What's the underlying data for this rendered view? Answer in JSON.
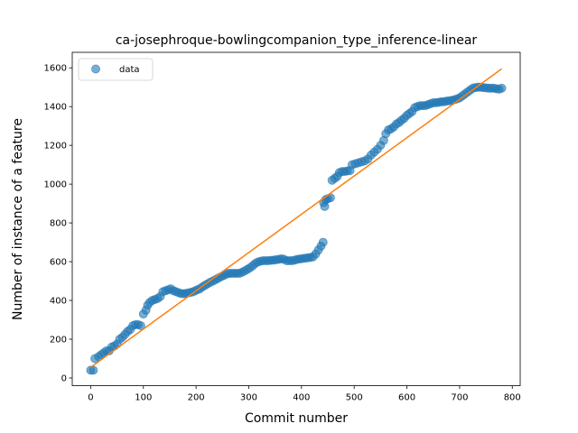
{
  "chart_data": {
    "type": "scatter",
    "title": "ca-josephroque-bowlingcompanion_type_inference-linear",
    "xlabel": "Commit number",
    "ylabel": "Number of instance of a feature",
    "xlim": [
      -35,
      815
    ],
    "ylim": [
      -40,
      1680
    ],
    "xticks": [
      0,
      100,
      200,
      300,
      400,
      500,
      600,
      700,
      800
    ],
    "yticks": [
      0,
      200,
      400,
      600,
      800,
      1000,
      1200,
      1400,
      1600
    ],
    "grid": false,
    "legend_position": "upper-left",
    "colors": {
      "data": "#1f77b4",
      "fit": "#ff7f0e"
    },
    "series": [
      {
        "name": "data",
        "kind": "scatter",
        "points": [
          [
            0,
            40
          ],
          [
            5,
            40
          ],
          [
            8,
            100
          ],
          [
            15,
            110
          ],
          [
            20,
            120
          ],
          [
            25,
            130
          ],
          [
            30,
            140
          ],
          [
            35,
            140
          ],
          [
            40,
            160
          ],
          [
            45,
            165
          ],
          [
            50,
            175
          ],
          [
            55,
            200
          ],
          [
            60,
            210
          ],
          [
            65,
            225
          ],
          [
            70,
            240
          ],
          [
            75,
            250
          ],
          [
            80,
            270
          ],
          [
            85,
            275
          ],
          [
            90,
            275
          ],
          [
            95,
            270
          ],
          [
            100,
            330
          ],
          [
            105,
            350
          ],
          [
            108,
            375
          ],
          [
            112,
            390
          ],
          [
            117,
            400
          ],
          [
            122,
            405
          ],
          [
            127,
            410
          ],
          [
            132,
            420
          ],
          [
            137,
            445
          ],
          [
            142,
            450
          ],
          [
            147,
            455
          ],
          [
            152,
            460
          ],
          [
            157,
            450
          ],
          [
            162,
            445
          ],
          [
            167,
            440
          ],
          [
            172,
            435
          ],
          [
            177,
            435
          ],
          [
            182,
            437
          ],
          [
            187,
            440
          ],
          [
            192,
            443
          ],
          [
            197,
            448
          ],
          [
            202,
            455
          ],
          [
            207,
            460
          ],
          [
            212,
            470
          ],
          [
            217,
            478
          ],
          [
            222,
            486
          ],
          [
            227,
            494
          ],
          [
            232,
            500
          ],
          [
            237,
            507
          ],
          [
            242,
            515
          ],
          [
            247,
            522
          ],
          [
            252,
            528
          ],
          [
            257,
            535
          ],
          [
            262,
            540
          ],
          [
            267,
            540
          ],
          [
            272,
            540
          ],
          [
            277,
            540
          ],
          [
            282,
            540
          ],
          [
            287,
            545
          ],
          [
            292,
            552
          ],
          [
            297,
            560
          ],
          [
            302,
            568
          ],
          [
            307,
            578
          ],
          [
            312,
            590
          ],
          [
            317,
            598
          ],
          [
            322,
            602
          ],
          [
            327,
            605
          ],
          [
            332,
            605
          ],
          [
            337,
            605
          ],
          [
            342,
            607
          ],
          [
            347,
            608
          ],
          [
            352,
            610
          ],
          [
            357,
            612
          ],
          [
            362,
            615
          ],
          [
            367,
            612
          ],
          [
            372,
            605
          ],
          [
            377,
            605
          ],
          [
            382,
            605
          ],
          [
            387,
            608
          ],
          [
            392,
            612
          ],
          [
            397,
            614
          ],
          [
            402,
            616
          ],
          [
            407,
            618
          ],
          [
            412,
            620
          ],
          [
            417,
            622
          ],
          [
            422,
            625
          ],
          [
            427,
            640
          ],
          [
            432,
            660
          ],
          [
            437,
            680
          ],
          [
            441,
            700
          ],
          [
            442,
            905
          ],
          [
            444,
            885
          ],
          [
            446,
            920
          ],
          [
            450,
            925
          ],
          [
            455,
            930
          ],
          [
            458,
            1020
          ],
          [
            463,
            1030
          ],
          [
            468,
            1040
          ],
          [
            472,
            1060
          ],
          [
            477,
            1065
          ],
          [
            482,
            1065
          ],
          [
            487,
            1068
          ],
          [
            492,
            1070
          ],
          [
            496,
            1100
          ],
          [
            502,
            1105
          ],
          [
            508,
            1110
          ],
          [
            514,
            1115
          ],
          [
            520,
            1120
          ],
          [
            526,
            1130
          ],
          [
            532,
            1150
          ],
          [
            538,
            1165
          ],
          [
            544,
            1180
          ],
          [
            550,
            1200
          ],
          [
            556,
            1225
          ],
          [
            560,
            1260
          ],
          [
            565,
            1280
          ],
          [
            570,
            1285
          ],
          [
            575,
            1295
          ],
          [
            580,
            1310
          ],
          [
            585,
            1318
          ],
          [
            590,
            1330
          ],
          [
            595,
            1340
          ],
          [
            600,
            1355
          ],
          [
            605,
            1365
          ],
          [
            610,
            1375
          ],
          [
            615,
            1395
          ],
          [
            620,
            1400
          ],
          [
            625,
            1405
          ],
          [
            630,
            1405
          ],
          [
            635,
            1405
          ],
          [
            640,
            1410
          ],
          [
            645,
            1415
          ],
          [
            650,
            1420
          ],
          [
            655,
            1420
          ],
          [
            660,
            1422
          ],
          [
            665,
            1425
          ],
          [
            670,
            1425
          ],
          [
            675,
            1428
          ],
          [
            680,
            1430
          ],
          [
            685,
            1432
          ],
          [
            690,
            1435
          ],
          [
            695,
            1440
          ],
          [
            700,
            1445
          ],
          [
            705,
            1455
          ],
          [
            710,
            1465
          ],
          [
            715,
            1475
          ],
          [
            720,
            1485
          ],
          [
            725,
            1495
          ],
          [
            730,
            1498
          ],
          [
            735,
            1500
          ],
          [
            740,
            1500
          ],
          [
            745,
            1498
          ],
          [
            750,
            1497
          ],
          [
            755,
            1495
          ],
          [
            760,
            1495
          ],
          [
            765,
            1495
          ],
          [
            770,
            1492
          ],
          [
            775,
            1490
          ],
          [
            780,
            1495
          ]
        ]
      },
      {
        "name": "",
        "kind": "line",
        "points": [
          [
            0,
            55
          ],
          [
            780,
            1595
          ]
        ]
      }
    ],
    "legend": [
      {
        "label": "data",
        "marker": "circle"
      }
    ]
  }
}
